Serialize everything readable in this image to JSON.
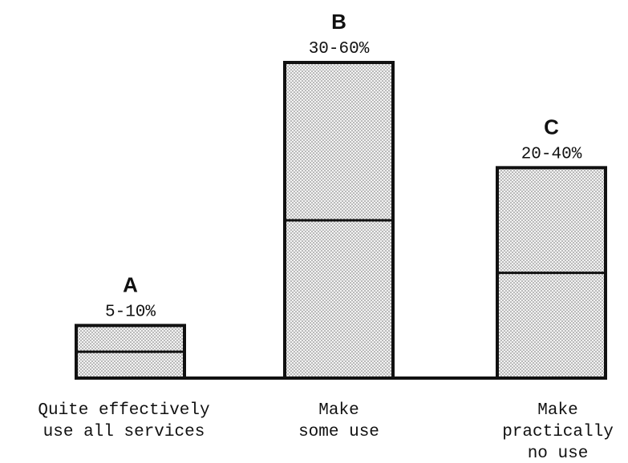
{
  "chart_data": {
    "type": "range-bar",
    "letters": [
      "A",
      "B",
      "C"
    ],
    "value_labels": [
      "5-10%",
      "30-60%",
      "20-40%"
    ],
    "ranges": [
      [
        5,
        10
      ],
      [
        30,
        60
      ],
      [
        20,
        40
      ]
    ],
    "categories": [
      [
        "Quite effectively",
        "use all services"
      ],
      [
        "Make",
        "some use"
      ],
      [
        "Make",
        "practically",
        "no use"
      ]
    ]
  }
}
